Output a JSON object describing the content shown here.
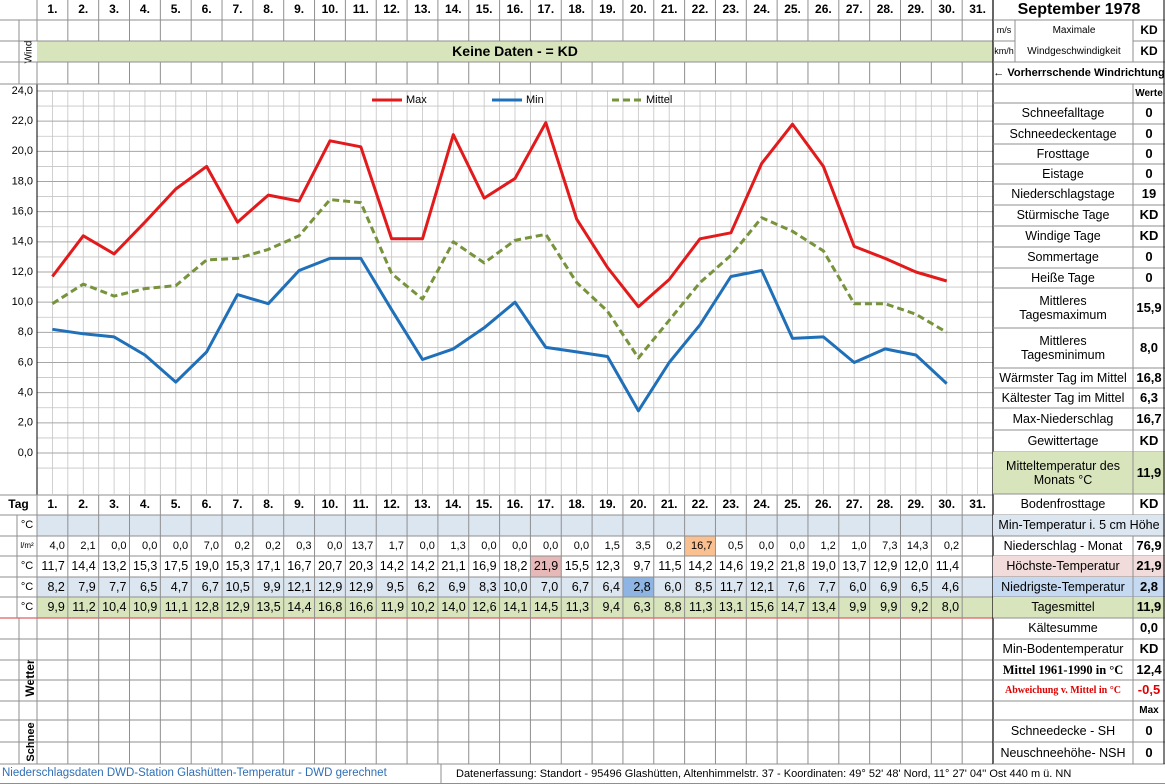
{
  "header": {
    "title": "September 1978"
  },
  "wind": {
    "label": "Wind",
    "unit_ms": "m/s",
    "unit_kmh": "km/h",
    "max_label_1": "Maximale",
    "max_label_2": "Windgeschwindigkeit",
    "max_ms": "KD",
    "max_kmh": "KD",
    "banner": "Keine Daten -  = KD",
    "direction": "← Vorherrschende Windrichtung"
  },
  "chart_data": {
    "type": "line",
    "categories": [
      "1.",
      "2.",
      "3.",
      "4.",
      "5.",
      "6.",
      "7.",
      "8.",
      "9.",
      "10.",
      "11.",
      "12.",
      "13.",
      "14.",
      "15.",
      "16.",
      "17.",
      "18.",
      "19.",
      "20.",
      "21.",
      "22.",
      "23.",
      "24.",
      "25.",
      "26.",
      "27.",
      "28.",
      "29.",
      "30.",
      "31."
    ],
    "series": [
      {
        "name": "Max",
        "color": "#e31a1c",
        "dash": false,
        "values": [
          11.7,
          14.4,
          13.2,
          15.3,
          17.5,
          19.0,
          15.3,
          17.1,
          16.7,
          20.7,
          20.3,
          14.2,
          14.2,
          21.1,
          16.9,
          18.2,
          21.9,
          15.5,
          12.3,
          9.7,
          11.5,
          14.2,
          14.6,
          19.2,
          21.8,
          19.0,
          13.7,
          12.9,
          12.0,
          11.4,
          null
        ],
        "value_labels": [
          "11,7",
          "14,4",
          "13,2",
          "15,3",
          "17,5",
          "19,0",
          "15,3",
          "17,1",
          "16,7",
          "20,7",
          "20,3",
          "14,2",
          "14,2",
          "21,1",
          "16,9",
          "18,2",
          "21,9",
          "15,5",
          "12,3",
          "9,7",
          "11,5",
          "14,2",
          "14,6",
          "19,2",
          "21,8",
          "19,0",
          "13,7",
          "12,9",
          "12,0",
          "11,4",
          null
        ]
      },
      {
        "name": "Min",
        "color": "#1f70b8",
        "dash": false,
        "values": [
          8.2,
          7.9,
          7.7,
          6.5,
          4.7,
          6.7,
          10.5,
          9.9,
          12.1,
          12.9,
          12.9,
          9.5,
          6.2,
          6.9,
          8.3,
          10.0,
          7.0,
          6.7,
          6.4,
          2.8,
          6.0,
          8.5,
          11.7,
          12.1,
          7.6,
          7.7,
          6.0,
          6.9,
          6.5,
          4.6,
          null
        ],
        "value_labels": [
          "8,2",
          "7,9",
          "7,7",
          "6,5",
          "4,7",
          "6,7",
          "10,5",
          "9,9",
          "12,1",
          "12,9",
          "12,9",
          "9,5",
          "6,2",
          "6,9",
          "8,3",
          "10,0",
          "7,0",
          "6,7",
          "6,4",
          "2,8",
          "6,0",
          "8,5",
          "11,7",
          "12,1",
          "7,6",
          "7,7",
          "6,0",
          "6,9",
          "6,5",
          "4,6",
          null
        ]
      },
      {
        "name": "Mittel",
        "color": "#77933c",
        "dash": true,
        "values": [
          9.9,
          11.2,
          10.4,
          10.9,
          11.1,
          12.8,
          12.9,
          13.5,
          14.4,
          16.8,
          16.6,
          11.9,
          10.2,
          14.0,
          12.6,
          14.1,
          14.5,
          11.3,
          9.4,
          6.3,
          8.8,
          11.3,
          13.1,
          15.6,
          14.7,
          13.4,
          9.9,
          9.9,
          9.2,
          8.0,
          null
        ],
        "value_labels": [
          "9,9",
          "11,2",
          "10,4",
          "10,9",
          "11,1",
          "12,8",
          "12,9",
          "13,5",
          "14,4",
          "16,8",
          "16,6",
          "11,9",
          "10,2",
          "14,0",
          "12,6",
          "14,1",
          "14,5",
          "11,3",
          "9,4",
          "6,3",
          "8,8",
          "11,3",
          "13,1",
          "15,6",
          "14,7",
          "13,4",
          "9,9",
          "9,9",
          "9,2",
          "8,0",
          null
        ]
      }
    ],
    "ylim": [
      0,
      24
    ],
    "yticks": [
      {
        "value": 0,
        "label": "0,0"
      },
      {
        "value": 2,
        "label": "2,0"
      },
      {
        "value": 4,
        "label": "4,0"
      },
      {
        "value": 6,
        "label": "6,0"
      },
      {
        "value": 8,
        "label": "8,0"
      },
      {
        "value": 10,
        "label": "10,0"
      },
      {
        "value": 12,
        "label": "12,0"
      },
      {
        "value": 14,
        "label": "14,0"
      },
      {
        "value": 16,
        "label": "16,0"
      },
      {
        "value": 18,
        "label": "18,0"
      },
      {
        "value": 20,
        "label": "20,0"
      },
      {
        "value": 22,
        "label": "22,0"
      },
      {
        "value": 24,
        "label": "24,0"
      }
    ],
    "grid": true,
    "legend": "top"
  },
  "table": {
    "day_label": "Tag",
    "units": [
      "°C",
      "l/m²",
      "°C",
      "°C",
      "°C"
    ],
    "precipitation": [
      "4,0",
      "2,1",
      "0,0",
      "0,0",
      "0,0",
      "7,0",
      "0,2",
      "0,2",
      "0,3",
      "0,0",
      "13,7",
      "1,7",
      "0,0",
      "1,3",
      "0,0",
      "0,0",
      "0,0",
      "0,0",
      "1,5",
      "3,5",
      "0,2",
      "16,7",
      "0,5",
      "0,0",
      "0,0",
      "1,2",
      "1,0",
      "7,3",
      "14,3",
      "0,2",
      null
    ]
  },
  "stats": [
    {
      "value": "Werte"
    },
    {
      "label": "Schneefalltage",
      "value": "0"
    },
    {
      "label": "Schneedeckentage",
      "value": "0"
    },
    {
      "label": "Frosttage",
      "value": "0"
    },
    {
      "label": "Eistage",
      "value": "0"
    },
    {
      "label": "Niederschlagstage",
      "value": "19"
    },
    {
      "label": "Stürmische Tage",
      "value": "KD"
    },
    {
      "label": "Windige Tage",
      "value": "KD"
    },
    {
      "label": "Sommertage",
      "value": "0"
    },
    {
      "label": "Heiße Tage",
      "value": "0"
    },
    {
      "label": "Mittleres Tagesmaximum",
      "value": "15,9"
    },
    {
      "label": "Mittleres Tagesminimum",
      "value": "8,0"
    },
    {
      "label": "Wärmster Tag im Mittel",
      "value": "16,8"
    },
    {
      "label": "Kältester Tag im Mittel",
      "value": "6,3"
    },
    {
      "label": "Max-Niederschlag",
      "value": "16,7"
    },
    {
      "label": "Gewittertage",
      "value": "KD"
    },
    {
      "label": "Mitteltemperatur des Monats °C",
      "value": "11,9"
    },
    {
      "label": "Bodenfrosttage",
      "value": "KD"
    },
    {
      "label": "Min-Temperatur i. 5 cm Höhe"
    },
    {
      "label": "Niederschlag - Monat",
      "value": "76,9"
    },
    {
      "label": "Höchste-Temperatur",
      "value": "21,9"
    },
    {
      "label": "Niedrigste-Temperatur",
      "value": "2,8"
    },
    {
      "label": "Tagesmittel",
      "value": "11,9"
    },
    {
      "label": "Kältesumme",
      "value": "0,0"
    },
    {
      "label": "Min-Bodentemperatur",
      "value": "KD"
    },
    {
      "label": "Mittel 1961-1990 in °C",
      "value": "12,4"
    },
    {
      "label": "Abweichung v. Mittel in °C",
      "value": "-0,5"
    },
    {
      "value": "Max"
    },
    {
      "label": "Schneedecke -  SH",
      "value": "0"
    },
    {
      "label": "Neuschneehöhe- NSH",
      "value": "0"
    }
  ],
  "side_labels": {
    "weather": "Wetter",
    "snow": "Schnee"
  },
  "footer": {
    "source": "Niederschlagsdaten DWD-Station Glashütten-Temperatur -  DWD gerechnet",
    "location": "Datenerfassung: Standort -  95496  Glashütten, Altenhimmelstr. 37 - Koordinaten:  49° 52' 48' Nord,  11° 27' 04'' Ost   440 m ü. NN"
  }
}
